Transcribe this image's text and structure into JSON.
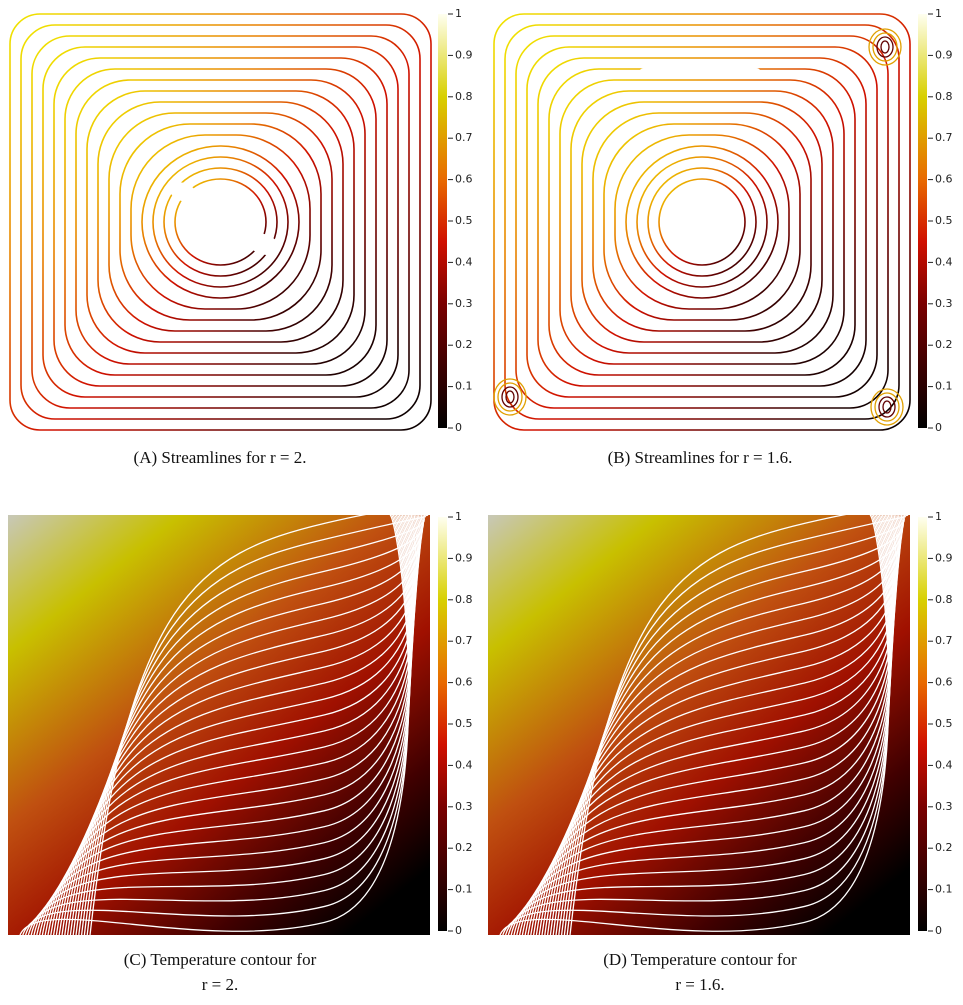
{
  "panels": [
    {
      "caption": [
        "(A) Streamlines for r = 2."
      ],
      "colorbar": {
        "ylim": [
          0,
          1
        ],
        "ticks": [
          0,
          0.1,
          0.2,
          0.3,
          0.4,
          0.5,
          0.6,
          0.7,
          0.8,
          0.9,
          1
        ]
      }
    },
    {
      "caption": [
        "(B) Streamlines for r = 1.6."
      ],
      "colorbar": {
        "ylim": [
          0,
          1
        ],
        "ticks": [
          0,
          0.1,
          0.2,
          0.3,
          0.4,
          0.5,
          0.6,
          0.7,
          0.8,
          0.9,
          1
        ]
      }
    },
    {
      "caption": [
        "(C) Temperature contour for",
        "r = 2."
      ],
      "colorbar": {
        "ylim": [
          0,
          1
        ],
        "ticks": [
          0,
          0.1,
          0.2,
          0.3,
          0.4,
          0.5,
          0.6,
          0.7,
          0.8,
          0.9,
          1
        ]
      }
    },
    {
      "caption": [
        "(D) Temperature contour for",
        "r = 1.6."
      ],
      "colorbar": {
        "ylim": [
          0,
          1
        ],
        "ticks": [
          0,
          0.1,
          0.2,
          0.3,
          0.4,
          0.5,
          0.6,
          0.7,
          0.8,
          0.9,
          1
        ]
      }
    }
  ]
}
